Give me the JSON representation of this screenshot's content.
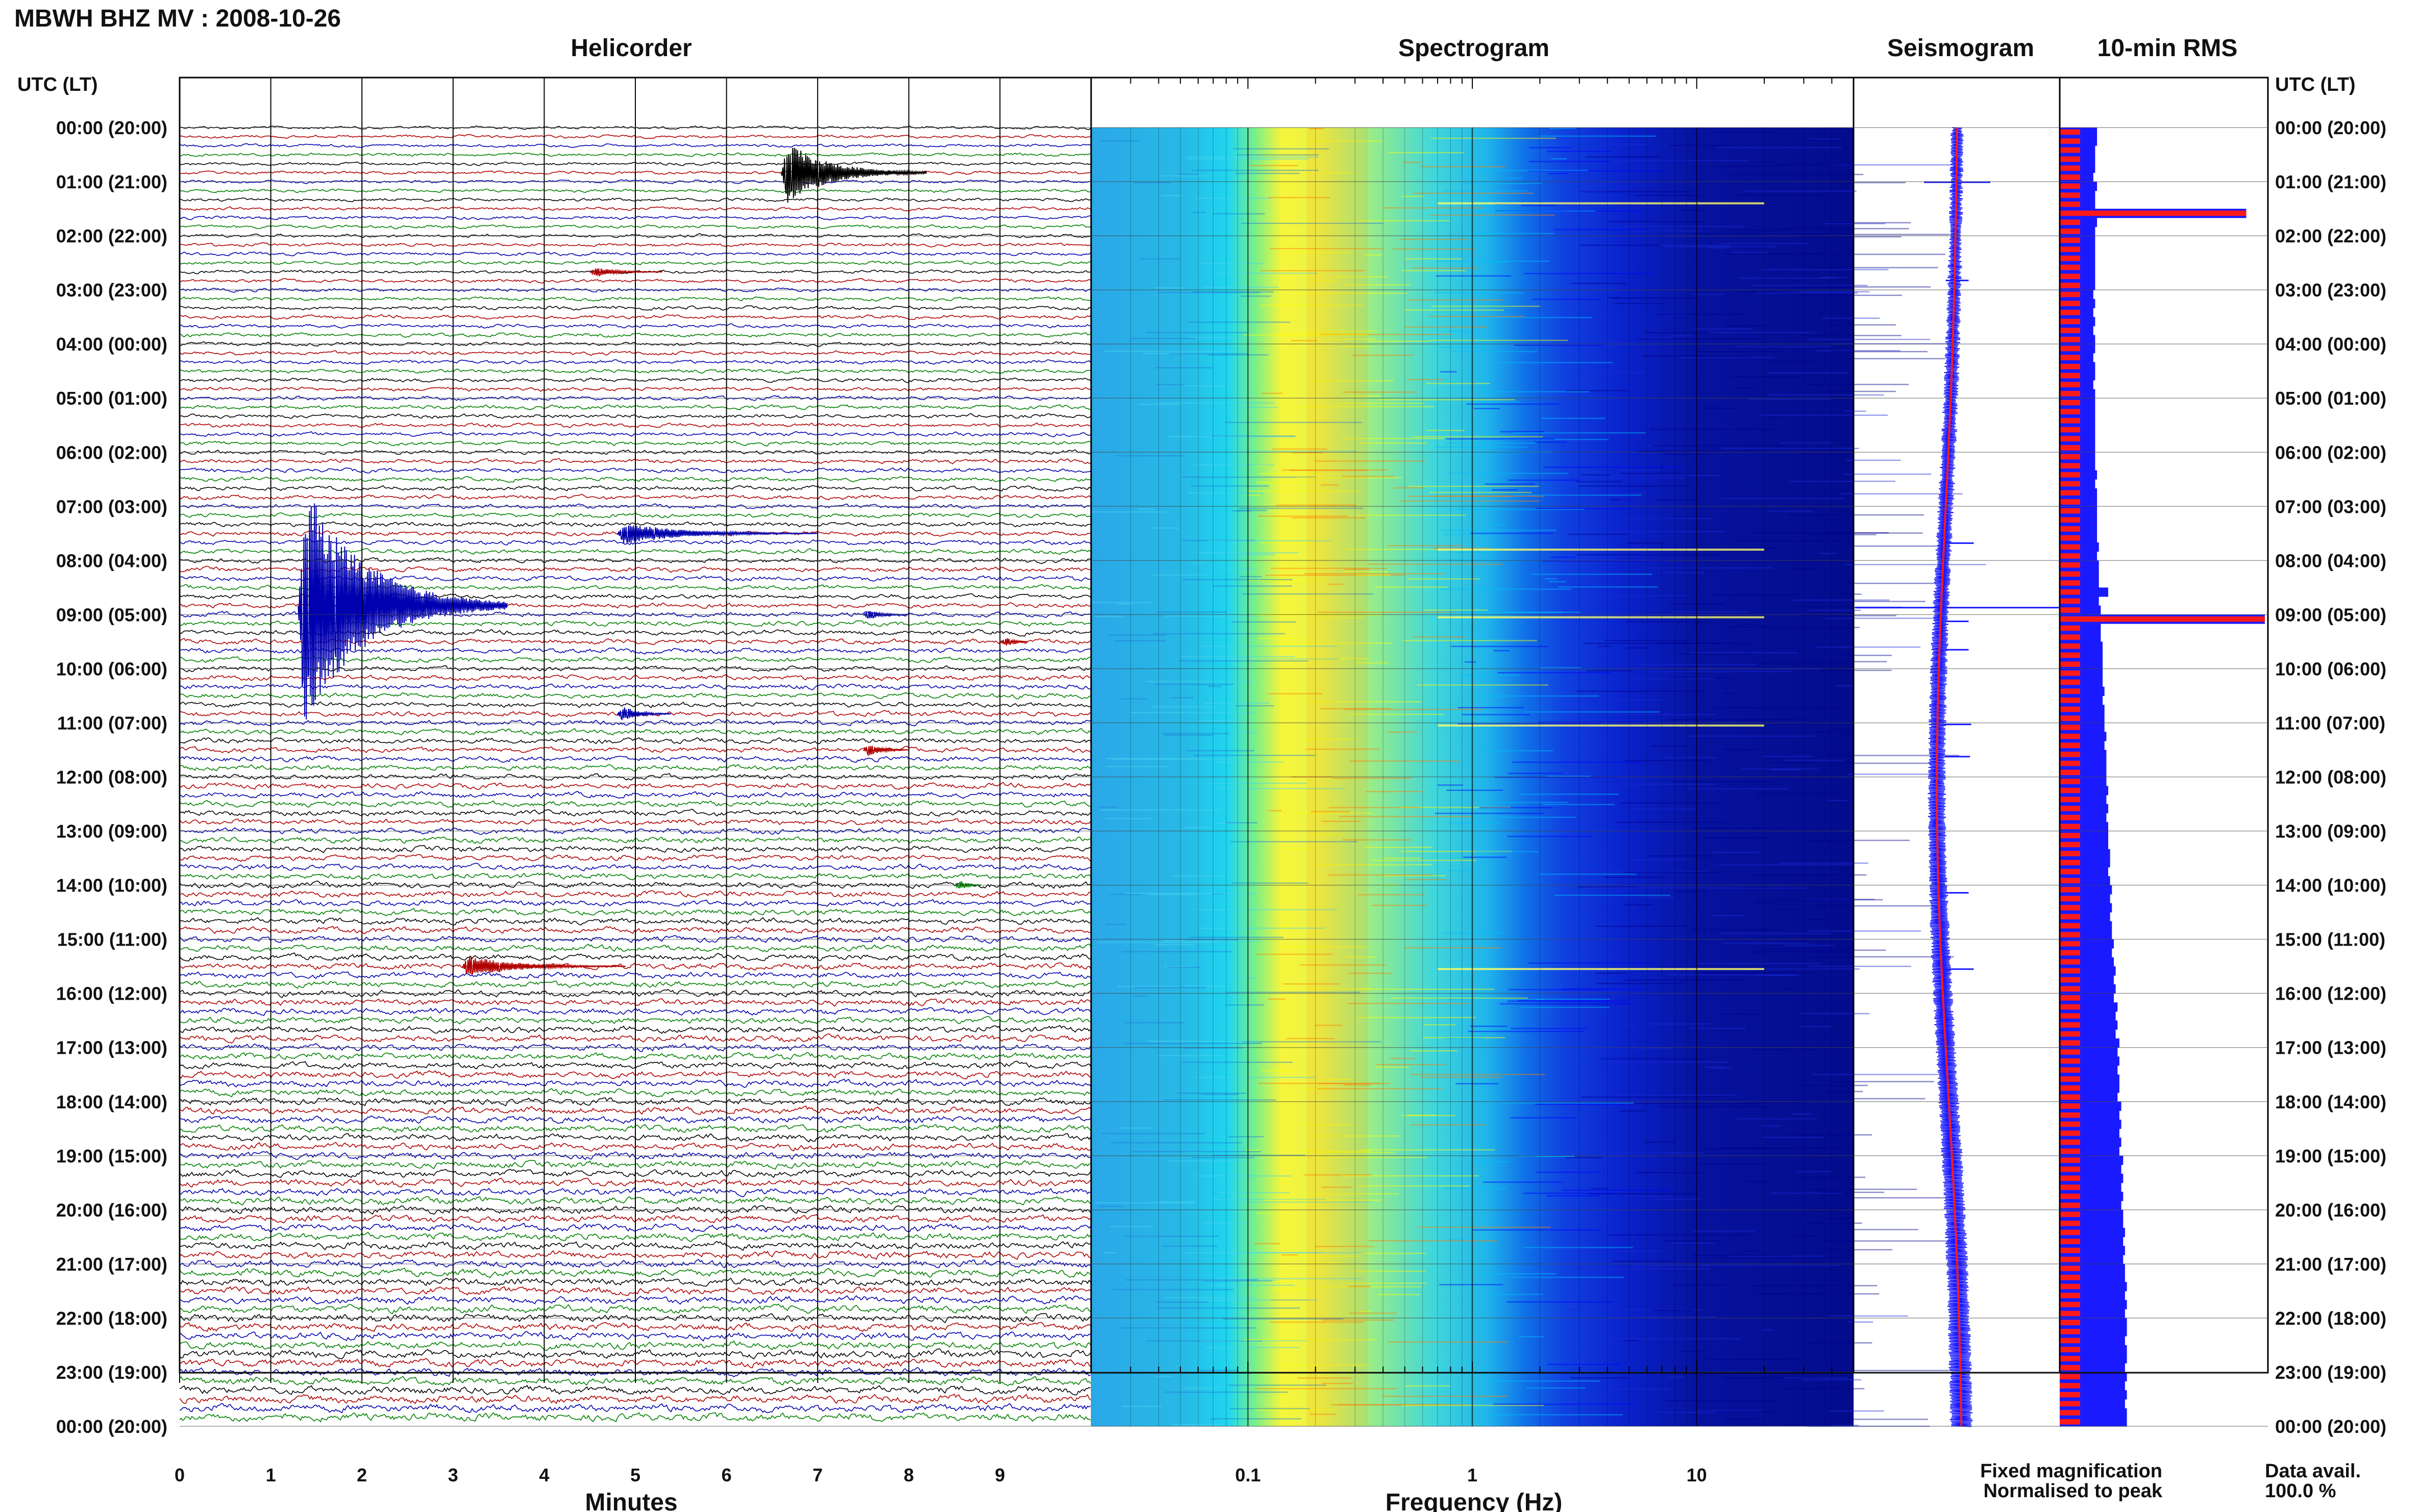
{
  "header": {
    "title": "MBWH BHZ MV : 2008-10-26"
  },
  "panels": {
    "helicorder": "Helicorder",
    "spectrogram": "Spectrogram",
    "seismogram": "Seismogram",
    "rms": "10-min RMS"
  },
  "time_axis": {
    "label": "UTC (LT)",
    "ticks": [
      "00:00 (20:00)",
      "01:00 (21:00)",
      "02:00 (22:00)",
      "03:00 (23:00)",
      "04:00 (00:00)",
      "05:00 (01:00)",
      "06:00 (02:00)",
      "07:00 (03:00)",
      "08:00 (04:00)",
      "09:00 (05:00)",
      "10:00 (06:00)",
      "11:00 (07:00)",
      "12:00 (08:00)",
      "13:00 (09:00)",
      "14:00 (10:00)",
      "15:00 (11:00)",
      "16:00 (12:00)",
      "17:00 (13:00)",
      "18:00 (14:00)",
      "19:00 (15:00)",
      "20:00 (16:00)",
      "21:00 (17:00)",
      "22:00 (18:00)",
      "23:00 (19:00)",
      "00:00 (20:00)"
    ]
  },
  "minutes_axis": {
    "label": "Minutes",
    "ticks": [
      "0",
      "1",
      "2",
      "3",
      "4",
      "5",
      "6",
      "7",
      "8",
      "9"
    ]
  },
  "frequency_axis": {
    "label": "Frequency (Hz)",
    "ticks": [
      "0.1",
      "1",
      "10"
    ]
  },
  "legend": {
    "fixed": "Fixed magnification",
    "normalised": "Normalised to peak",
    "fixed_color": "#1a1aff",
    "normalised_color": "#ff1a1a"
  },
  "data_avail": {
    "label": "Data avail.",
    "value": "100.0 %"
  },
  "chart_data": {
    "type": "helicorder",
    "trace_colors": [
      "#000000",
      "#b00000",
      "#0000b0",
      "#008000"
    ],
    "lines_per_hour": 6,
    "minutes_per_line": 10,
    "hours": 24,
    "events": [
      {
        "hour": 0.9,
        "minute": 6.6,
        "amplitude": 1.0,
        "duration_min": 1.6,
        "color": "#000000"
      },
      {
        "hour": 2.75,
        "minute": 4.5,
        "amplitude": 0.15,
        "duration_min": 0.8,
        "color": "#b00000"
      },
      {
        "hour": 7.6,
        "minute": 4.8,
        "amplitude": 0.35,
        "duration_min": 2.2,
        "color": "#0000b0"
      },
      {
        "hour": 8.85,
        "minute": 1.3,
        "amplitude": 4.0,
        "duration_min": 2.3,
        "color": "#0000b0"
      },
      {
        "hour": 9.0,
        "minute": 7.5,
        "amplitude": 0.15,
        "duration_min": 0.5,
        "color": "#0000b0"
      },
      {
        "hour": 9.5,
        "minute": 9.0,
        "amplitude": 0.15,
        "duration_min": 0.3,
        "color": "#b00000"
      },
      {
        "hour": 10.95,
        "minute": 4.8,
        "amplitude": 0.25,
        "duration_min": 0.6,
        "color": "#0000b0"
      },
      {
        "hour": 11.5,
        "minute": 7.5,
        "amplitude": 0.2,
        "duration_min": 0.5,
        "color": "#b00000"
      },
      {
        "hour": 14.0,
        "minute": 8.5,
        "amplitude": 0.15,
        "duration_min": 0.3,
        "color": "#008000"
      },
      {
        "hour": 15.5,
        "minute": 3.1,
        "amplitude": 0.35,
        "duration_min": 1.8,
        "color": "#b00000"
      }
    ],
    "spectrogram": {
      "xscale": "log",
      "xlim": [
        0.02,
        50
      ],
      "peak_frequency_hz": 0.25,
      "colormap": [
        "#00008b",
        "#0000ff",
        "#00bfff",
        "#00ffff",
        "#7fff7f",
        "#ffff00",
        "#ff7f00",
        "#ff0000"
      ],
      "streak_hours": [
        1.4,
        7.8,
        9.05,
        11.05,
        15.55
      ]
    },
    "rms": {
      "fixed_magnification": [
        2.0,
        2.0,
        1.9,
        1.9,
        1.9,
        1.8,
        2.0,
        1.9,
        1.9,
        10.0,
        2.0,
        1.9,
        1.9,
        1.9,
        1.9,
        1.9,
        1.9,
        1.9,
        1.8,
        1.9,
        1.8,
        1.9,
        1.8,
        1.9,
        1.9,
        1.8,
        1.9,
        1.9,
        1.8,
        1.9,
        1.9,
        1.9,
        1.9,
        1.9,
        1.9,
        1.9,
        1.9,
        1.9,
        2.0,
        1.9,
        2.0,
        2.0,
        2.0,
        2.0,
        2.0,
        2.0,
        2.1,
        2.0,
        2.1,
        2.1,
        2.1,
        2.6,
        2.1,
        2.2,
        11.0,
        2.2,
        2.2,
        2.3,
        2.3,
        2.3,
        2.3,
        2.3,
        2.4,
        2.3,
        2.4,
        2.4,
        2.4,
        2.5,
        2.4,
        2.5,
        2.5,
        2.5,
        2.5,
        2.6,
        2.5,
        2.6,
        2.5,
        2.6,
        2.6,
        2.6,
        2.7,
        2.7,
        2.6,
        2.7,
        2.8,
        2.7,
        2.8,
        2.7,
        2.8,
        2.8,
        2.9,
        2.8,
        2.9,
        3.0,
        2.9,
        3.0,
        2.9,
        3.1,
        3.0,
        3.1,
        3.0,
        3.2,
        3.1,
        3.2,
        3.1,
        3.2,
        3.2,
        3.1,
        3.3,
        3.2,
        3.3,
        3.2,
        3.3,
        3.2,
        3.4,
        3.3,
        3.4,
        3.3,
        3.4,
        3.3,
        3.4,
        3.4,
        3.5,
        3.4,
        3.5,
        3.4,
        3.5,
        3.5,
        3.6,
        3.5,
        3.6,
        3.5,
        3.6,
        3.6,
        3.5,
        3.6,
        3.6,
        3.5,
        3.6,
        3.5,
        3.6,
        3.5,
        3.6,
        3.6
      ],
      "normalised_level": 0.6
    }
  }
}
